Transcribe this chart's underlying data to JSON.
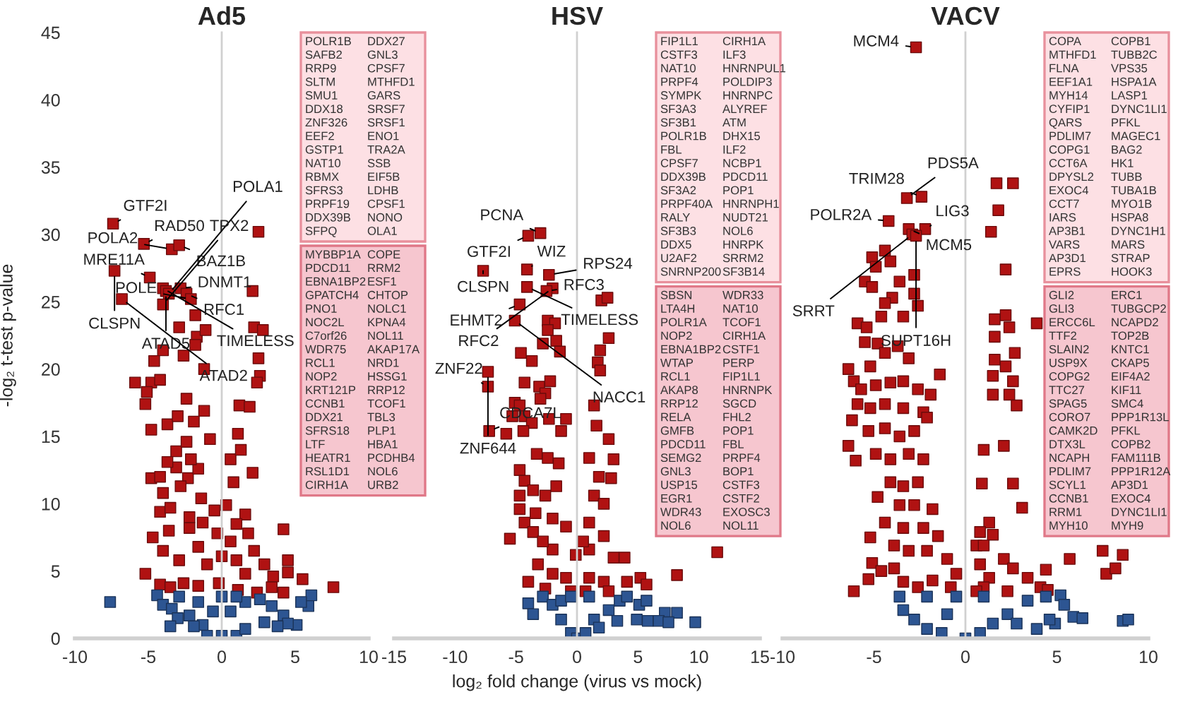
{
  "chart_data": [
    {
      "type": "scatter",
      "title": "Ad5",
      "ylabel": "-log₂ t-test p-value",
      "xlim": [
        -10,
        10
      ],
      "ylim": [
        0,
        45
      ],
      "xticks": [
        -10,
        -5,
        0,
        5,
        10
      ],
      "yticks": [
        0,
        5,
        10,
        15,
        20,
        25,
        30,
        35,
        40,
        45
      ],
      "marker": "square",
      "series": [
        {
          "color": "#b01212",
          "x": [
            -7.4,
            -5.3,
            -3.4,
            -2.9,
            -7.3,
            -4.9,
            -2.8,
            -2.4,
            -2.1,
            -6.8,
            -4.0,
            -3.8,
            -3.6,
            -4.0,
            2.5,
            2.1,
            2.2,
            2.8,
            2.5,
            -1.2,
            2.6,
            2.4,
            -5.9,
            -4.8,
            -4.2,
            -5.1,
            -5.2,
            -4.8,
            -2.4,
            1.2,
            1.9,
            -1.2,
            -3.7,
            -3.0,
            -1.9,
            -0.8,
            1.1,
            -3.1,
            -4.8,
            -4.2,
            -4.0,
            -2.3,
            -3.1,
            -1.6,
            2.1,
            -0.5,
            -4.2,
            0.3,
            4.2,
            4.5,
            3.5,
            4.5,
            5.5,
            7.6,
            -5.2,
            -4.2,
            -4.7,
            -3.6,
            -2.2,
            -4.0,
            -2.9,
            -1.6,
            -1.0,
            0.0,
            0.6,
            1.0,
            1.6,
            2.2,
            2.9,
            3.4,
            0.8,
            0.6,
            1.3,
            -1.4,
            -1.3,
            -0.3,
            -0.2,
            -2.6,
            -1.6,
            -3.5,
            1.1,
            2.4,
            4.2,
            -3.5,
            -2.8,
            -2.4,
            -2.1,
            -3.7,
            -2.2,
            1.6,
            1.0,
            1.8,
            -2.6,
            -1.7,
            -2.9,
            -4.0,
            -1.8,
            -1.1,
            -4.6,
            -1.8
          ],
          "values": [
            30.8,
            29.3,
            28.9,
            29.2,
            27.3,
            26.8,
            26.0,
            25.6,
            25.2,
            25.2,
            26.0,
            25.8,
            25.6,
            24.8,
            30.2,
            25.8,
            23.1,
            22.9,
            20.8,
            20.0,
            19.5,
            19.0,
            19.0,
            19.0,
            19.2,
            18.3,
            17.4,
            15.5,
            17.8,
            17.3,
            17.2,
            16.9,
            15.9,
            16.5,
            16.1,
            14.8,
            15.2,
            13.9,
            11.9,
            12.0,
            10.8,
            11.9,
            12.7,
            12.6,
            12.3,
            9.5,
            9.4,
            9.9,
            8.1,
            4.9,
            4.6,
            5.8,
            4.4,
            3.8,
            4.8,
            4.0,
            7.5,
            8.0,
            8.2,
            6.5,
            5.8,
            6.8,
            5.5,
            6.1,
            7.2,
            5.8,
            4.8,
            6.5,
            5.5,
            3.8,
            11.6,
            13.3,
            14.0,
            10.4,
            8.6,
            7.8,
            4.1,
            4.1,
            3.9,
            3.8,
            3.6,
            3.4,
            3.4,
            9.7,
            11.3,
            14.6,
            13.3,
            13.1,
            9.0,
            9.2,
            8.5,
            7.8,
            21.0,
            22.4,
            23.1,
            21.4,
            24.0,
            22.9,
            20.6,
            21.8
          ]
        },
        {
          "color": "#2d5592",
          "x": [
            -7.6,
            -4.4,
            -4.0,
            -3.4,
            -2.9,
            -2.2,
            -1.3,
            -0.6,
            0.0,
            -1.0,
            1.0,
            0.6,
            1.6,
            2.6,
            3.4,
            4.2,
            5.1,
            4.5,
            6.1,
            5.9,
            5.4,
            2.9,
            3.8,
            1.6,
            -1.9,
            -3.0,
            -1.6,
            0.0,
            1.0,
            -3.5
          ],
          "values": [
            2.7,
            3.2,
            2.5,
            2.2,
            3.1,
            1.7,
            1.0,
            2.0,
            0.2,
            0.2,
            0.2,
            2.0,
            2.7,
            2.9,
            2.4,
            1.7,
            1.0,
            1.1,
            3.2,
            2.4,
            2.7,
            1.2,
            0.9,
            0.7,
            0.9,
            1.5,
            2.7,
            3.1,
            3.1,
            0.9
          ]
        }
      ],
      "annotations": [
        {
          "text": "GTF2I",
          "x": -7.4,
          "y": 30.8
        },
        {
          "text": "RAD50",
          "x": -5.3,
          "y": 29.3
        },
        {
          "text": "POLA2",
          "x": -3.4,
          "y": 28.9
        },
        {
          "text": "BAZ1B",
          "x": -2.9,
          "y": 29.2
        },
        {
          "text": "CLSPN",
          "x": -7.3,
          "y": 27.3
        },
        {
          "text": "MRE11A",
          "x": -4.9,
          "y": 26.8
        },
        {
          "text": "DNMT1",
          "x": -2.8,
          "y": 26.0
        },
        {
          "text": "RFC1",
          "x": -2.4,
          "y": 25.6
        },
        {
          "text": "POLE",
          "x": -2.1,
          "y": 25.2
        },
        {
          "text": "ATAD2",
          "x": -6.8,
          "y": 25.2
        },
        {
          "text": "TIMELESS",
          "x": -4.0,
          "y": 26.0
        },
        {
          "text": "ATAD5",
          "x": -3.8,
          "y": 25.8
        },
        {
          "text": "POLA1",
          "x": -3.6,
          "y": 25.6
        },
        {
          "text": "TPX2",
          "x": -4.0,
          "y": 24.8
        },
        "POLR1B DDX27\nSAFB2 GNL3\nRRP9 CPSF7\nSLTM MTHFD1\nSMU1 GARS\nDDX18 SRSF7\nZNF326 SRSF1\nEEF2 ENO1\nGSTP1 TRA2A\nNAT10 SSB\nRBMX EIF5B\nSFRS3 LDHB\nPRPF19 CPSF1\nDDX39B NONO\nSFPQ OLA1",
        "MYBBP1A COPE\nPDCD11 RRM2\nEBNA1BP2 ESF1\nGPATCH4 CHTOP\nPNO1 NOLC1\nNOC2L KPNA4\nC7orf26 NOL11\nWDR75 AKAP17A\nRCL1 NRD1\nNOP2 HSSG1\nKRT121P RRP12\nCCNB1 TCOF1\nDDX21 TBL3\nSFRS18 PLP1\nLTF HBA1\nHEATR1 PCDHB4\nRSL1D1 NOL6\nCIRH1A URB2"
      ]
    },
    {
      "type": "scatter",
      "title": "HSV",
      "xlabel": "log₂ fold change (virus vs mock)",
      "xlim": [
        -15,
        15
      ],
      "ylim": [
        0,
        45
      ],
      "xticks": [
        -15,
        -10,
        -5,
        0,
        5,
        10,
        15
      ],
      "yticks": [
        0,
        5,
        10,
        15,
        20,
        25,
        30,
        35,
        40,
        45
      ],
      "marker": "square",
      "tick_labels": "x",
      "series": [
        {
          "color": "#b01212",
          "x": [
            -4.0,
            -3.0,
            -4.1,
            -7.7,
            -4.1,
            -2.3,
            -2.0,
            -2.5,
            -4.7,
            -5.1,
            -7.3,
            -7.3,
            -7.2,
            2.0,
            2.5,
            2.6,
            1.9,
            1.7,
            1.9,
            -2.4,
            -1.8,
            -2.4,
            -2.8,
            -1.7,
            -1.4,
            -4.6,
            -3.7,
            -4.3,
            -3.1,
            -2.2,
            -2.6,
            -3.0,
            -5.1,
            -4.7,
            -4.3,
            -3.7,
            -5.3,
            -2.3,
            -0.9,
            -5.8,
            -4.4,
            -1.3,
            1.4,
            1.6,
            2.6,
            3.0,
            2.8,
            -3.3,
            -2.4,
            -1.5,
            -4.7,
            -4.3,
            -3.6,
            -2.6,
            -1.7,
            1.0,
            1.8,
            1.4,
            2.2,
            -4.7,
            -4.7,
            -4.3,
            -5.5,
            -3.6,
            -2.0,
            -0.9,
            1.0,
            2.2,
            1.0,
            3.0,
            3.9,
            5.2,
            8.2,
            11.5,
            4.1,
            5.7,
            -3.2,
            -2.0,
            -0.9,
            1.0,
            2.2,
            -4.0,
            -2.6,
            -0.5,
            0.7,
            2.6,
            -2.0,
            -0.1,
            0.5,
            -2.8,
            -3.4
          ],
          "values": [
            29.9,
            30.1,
            27.4,
            27.3,
            26.1,
            27.0,
            26.0,
            25.8,
            24.8,
            23.6,
            19.8,
            18.7,
            15.4,
            25.1,
            25.3,
            22.3,
            21.4,
            20.5,
            19.9,
            23.6,
            23.4,
            22.9,
            21.9,
            22.1,
            21.3,
            21.2,
            20.6,
            19.0,
            18.7,
            19.1,
            18.2,
            17.8,
            17.5,
            17.3,
            16.5,
            16.0,
            16.5,
            16.3,
            16.3,
            15.2,
            15.4,
            15.4,
            17.3,
            15.8,
            14.8,
            13.3,
            11.9,
            13.7,
            13.4,
            13.0,
            12.5,
            11.7,
            11.0,
            10.6,
            11.3,
            13.4,
            12.0,
            10.6,
            10.0,
            10.6,
            9.6,
            8.6,
            7.4,
            7.9,
            8.9,
            8.3,
            8.6,
            7.6,
            6.6,
            6.0,
            6.0,
            4.5,
            4.7,
            6.4,
            4.2,
            4.0,
            5.5,
            4.8,
            4.5,
            4.5,
            4.2,
            4.2,
            3.7,
            3.5,
            3.5,
            3.5,
            6.6,
            6.2,
            7.2,
            7.2,
            9.3
          ]
        },
        {
          "color": "#2d5592",
          "x": [
            -4.0,
            -3.6,
            -2.8,
            -2.0,
            -1.3,
            -0.5,
            0.0,
            0.7,
            1.4,
            2.6,
            3.5,
            4.1,
            5.1,
            5.7,
            5.8,
            7.2,
            8.2,
            6.7,
            7.5,
            9.7,
            4.9,
            3.3,
            1.8,
            -1.3,
            1.0,
            -0.5
          ],
          "values": [
            2.6,
            1.8,
            3.1,
            2.5,
            1.4,
            0.4,
            0.0,
            0.4,
            1.4,
            2.1,
            2.8,
            3.1,
            2.5,
            2.8,
            1.3,
            1.9,
            1.9,
            1.3,
            1.2,
            1.2,
            1.4,
            1.3,
            0.8,
            2.8,
            3.1,
            3.1
          ]
        }
      ],
      "annotations": [
        {
          "text": "GTF2I",
          "x": -4.0,
          "y": 29.9
        },
        {
          "text": "PCNA",
          "x": -3.0,
          "y": 30.1
        },
        {
          "text": "WIZ",
          "x": -4.1,
          "y": 27.4
        },
        {
          "text": "CLSPN",
          "x": -7.7,
          "y": 27.3
        },
        {
          "text": "TIMELESS",
          "x": -4.1,
          "y": 26.1
        },
        {
          "text": "RPS24",
          "x": -2.3,
          "y": 27.0
        },
        {
          "text": "RFC2",
          "x": -2.0,
          "y": 26.0
        },
        {
          "text": "RFC3",
          "x": -2.5,
          "y": 25.8
        },
        {
          "text": "EHMT2",
          "x": -4.7,
          "y": 24.8
        },
        {
          "text": "NACC1",
          "x": -5.1,
          "y": 23.6
        },
        {
          "text": "ZNF644",
          "x": -7.3,
          "y": 19.8
        },
        {
          "text": "ZNF22",
          "x": -7.3,
          "y": 18.7
        },
        {
          "text": "CDCA7L",
          "x": -7.2,
          "y": 15.4
        },
        "FIP1L1 CIRH1A\nCSTF3 ILF3\nNAT10 HNRNPUL1\nPRPF4 POLDIP3\nSYMPK HNRNPC\nSF3A3 ALYREF\nSF3B1 ATM\nPOLR1B DHX15\nFBL ILF2\nCPSF7 NCBP1\nDDX39B PDCD11\nSF3A2 POP1\nPRPF40A HNRNPH1\nRALY NUDT21\nSF3B3 NOL6\nDDX5 HNRPK\nU2AF2 SRRM2\nSNRNP200 SF3B14",
        "SBSN WDR33\nLTA4H NAT10\nPOLR1A TCOF1\nNOP2 CIRH1A\nEBNA1BP2 CSTF1\nWTAP PERP\nRCL1 FIP1L1\nAKAP8 HNRNPK\nRRP12 SGCD\nRELA FHL2\nGMFB POP1\nPDCD11 FBL\nSEMG2 PRPF4\nGNL3 BOP1\nUSP15 CSTF3\nEGR1 CSTF2\nWDR43 EXOSC3\nNOL6 NOL11"
      ]
    },
    {
      "type": "scatter",
      "title": "VACV",
      "xlim": [
        -10,
        10
      ],
      "ylim": [
        0,
        45
      ],
      "xticks": [
        -10,
        -5,
        0,
        5,
        10
      ],
      "yticks": [
        0,
        5,
        10,
        15,
        20,
        25,
        30,
        35,
        40,
        45
      ],
      "marker": "square",
      "tick_labels": "x",
      "series": [
        {
          "color": "#b01212",
          "x": [
            -2.7,
            -2.2,
            -3.1,
            -3.2,
            -2.4,
            -4.2,
            -2.9,
            -2.7,
            1.7,
            2.6,
            1.8,
            1.4,
            2.2,
            3.9,
            2.2,
            1.6,
            2.4,
            1.6,
            2.7,
            1.6,
            2.2,
            1.5,
            2.6,
            2.4,
            1.5,
            2.8,
            1.0,
            2.1,
            0.9,
            2.6,
            3.1,
            7.5,
            8.6,
            5.7,
            7.7,
            8.2,
            4.4,
            -4.4,
            -5.1,
            -4.9,
            -4.1,
            -5.5,
            -5.1,
            -2.8,
            -3.6,
            -2.8,
            -4.0,
            -4.4,
            -4.6,
            -2.6,
            -3.4,
            -5.9,
            -5.4,
            -5.5,
            -4.8,
            -4.4,
            -3.7,
            -3.1,
            -1.4,
            -6.4,
            -6.1,
            -5.2,
            -5.7,
            -4.9,
            -4.1,
            -3.4,
            -2.6,
            -1.9,
            -5.9,
            -5.2,
            -4.4,
            -3.4,
            -2.3,
            -6.2,
            -5.3,
            -4.4,
            -3.6,
            -2.8,
            -2.1,
            -6.4,
            -6.0,
            -4.9,
            -4.1,
            -3.1,
            -2.3,
            -2.6,
            -3.4,
            -4.1,
            -4.8,
            -3.6,
            -2.8,
            -1.8,
            -4.4,
            -3.4,
            -2.3,
            -1.5,
            -5.2,
            -3.9,
            -3.1,
            -2.1,
            -1.0,
            -5.1,
            -4.6,
            -5.3,
            -6.1,
            -3.9,
            -3.4,
            -2.6,
            -1.8,
            -0.8,
            -0.5,
            0.6,
            0.8,
            1.3,
            2.1,
            2.6,
            3.4,
            4.1,
            4.5,
            1.0,
            0.6,
            2.3,
            1.3,
            1.5,
            0.8,
            1.0
          ],
          "values": [
            43.9,
            30.4,
            30.4,
            32.7,
            32.8,
            31.0,
            30.0,
            29.9,
            33.8,
            33.8,
            31.8,
            30.2,
            27.4,
            23.4,
            24.0,
            23.7,
            23.1,
            22.4,
            21.2,
            20.7,
            20.2,
            19.5,
            19.1,
            18.1,
            18.1,
            17.3,
            14.0,
            14.3,
            11.5,
            11.5,
            9.7,
            6.5,
            6.2,
            5.9,
            4.8,
            5.2,
            5.1,
            28.8,
            28.3,
            27.6,
            28.0,
            26.5,
            26.1,
            27.0,
            26.5,
            25.6,
            25.3,
            24.9,
            23.9,
            24.7,
            23.9,
            23.4,
            23.1,
            22.0,
            21.9,
            21.2,
            21.7,
            20.8,
            19.6,
            20.0,
            19.1,
            20.2,
            18.5,
            18.8,
            19.0,
            19.1,
            18.5,
            18.1,
            17.4,
            17.1,
            17.4,
            17.1,
            16.8,
            16.2,
            15.4,
            15.6,
            15.0,
            15.4,
            16.4,
            14.3,
            13.2,
            13.7,
            13.3,
            13.7,
            13.3,
            11.6,
            11.3,
            11.6,
            10.5,
            9.9,
            9.9,
            9.6,
            8.6,
            8.2,
            8.2,
            7.6,
            7.5,
            6.9,
            6.5,
            6.5,
            5.9,
            5.6,
            5.0,
            4.4,
            3.5,
            5.2,
            4.2,
            3.8,
            4.3,
            3.8,
            4.8,
            6.9,
            5.5,
            4.5,
            5.9,
            5.2,
            4.5,
            3.8,
            3.6,
            3.8,
            3.5,
            3.5,
            8.6,
            7.7,
            7.9,
            6.9
          ]
        },
        {
          "color": "#2d5592",
          "x": [
            -3.6,
            -3.4,
            -2.8,
            -2.1,
            -1.3,
            -0.5,
            0.0,
            0.8,
            1.5,
            2.3,
            3.4,
            4.4,
            5.2,
            5.4,
            5.9,
            6.4,
            8.6,
            8.9,
            4.9,
            3.9,
            2.8,
            -2.1,
            1.0,
            -1.0,
            4.6
          ],
          "values": [
            3.1,
            2.1,
            1.4,
            0.7,
            0.4,
            3.1,
            0.0,
            0.4,
            1.1,
            1.8,
            2.8,
            3.1,
            3.2,
            2.5,
            1.6,
            1.5,
            1.3,
            1.4,
            1.1,
            0.7,
            1.1,
            3.1,
            3.1,
            1.8,
            1.4
          ]
        }
      ],
      "annotations": [
        {
          "text": "MCM4",
          "x": -2.7,
          "y": 43.9
        },
        {
          "text": "LIG3",
          "x": -2.2,
          "y": 30.4
        },
        {
          "text": "MCM5",
          "x": -3.1,
          "y": 30.4
        },
        {
          "text": "PDS5A",
          "x": -3.2,
          "y": 32.7
        },
        {
          "text": "TRIM28",
          "x": -2.4,
          "y": 32.8
        },
        {
          "text": "POLR2A",
          "x": -4.2,
          "y": 31.0
        },
        {
          "text": "SRRT",
          "x": -2.9,
          "y": 30.0
        },
        {
          "text": "SUPT16H",
          "x": -2.7,
          "y": 29.9
        },
        "COPA COPB1\nMTHFD1 TUBB2C\nFLNA VPS35\nEEF1A1 HSPA1A\nMYH14 LASP1\nCYFIP1 DYNC1LI1\nQARS PFKL\nPDLIM7 MAGEC1\nCOPG1 BAG2\nCCT6A HK1\nDPYSL2 TUBB\nEXOC4 TUBA1B\nCCT7 MYO1B\nIARS HSPA8\nAP3B1 DYNC1H1\nVARS MARS\nAP3D1 STRAP\nEPRS HOOK3",
        "GLI2 ERC1\nGLI3 TUBGCP2\nERCC6L NCAPD2\nTTF2 TOP2B\nSLAIN2 KNTC1\nUSP9X CKAP5\nCOPG2 EIF4A2\nTTC27 KIF11\nSPAG5 SMC4\nCORO7 PPP1R13L\nCAMK2D PFKL\nDTX3L COPB2\nNCAPH FAM111B\nPDLIM7 PPP1R12A\nSCYL1 AP3D1\nCCNB1 EXOC4\nRRM1 DYNC1LI1\nMYH10 MYH9"
      ]
    }
  ]
}
